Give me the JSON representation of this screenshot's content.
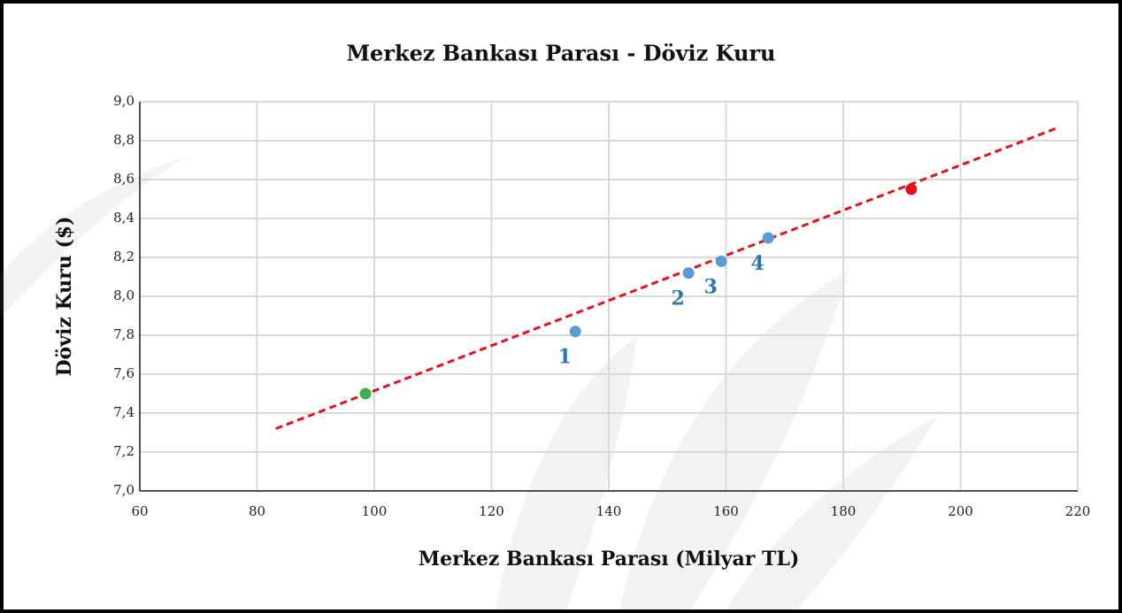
{
  "chart_data": {
    "type": "scatter",
    "title": "Merkez Bankası Parası - Döviz Kuru",
    "x_label": "Merkez Bankası Parası (Milyar TL)",
    "y_label": "Döviz Kuru ($)",
    "xlim": [
      60,
      220
    ],
    "xticks": [
      60,
      80,
      100,
      120,
      140,
      160,
      180,
      200,
      220
    ],
    "ylim": [
      7.0,
      9.0
    ],
    "yticks": [
      {
        "value": 7.0,
        "label": "7,0"
      },
      {
        "value": 7.2,
        "label": "7,2"
      },
      {
        "value": 7.4,
        "label": "7,4"
      },
      {
        "value": 7.6,
        "label": "7,6"
      },
      {
        "value": 7.8,
        "label": "7,8"
      },
      {
        "value": 8.0,
        "label": "8,0"
      },
      {
        "value": 8.2,
        "label": "8,2"
      },
      {
        "value": 8.4,
        "label": "8,4"
      },
      {
        "value": 8.6,
        "label": "8,6"
      },
      {
        "value": 8.8,
        "label": "8,8"
      },
      {
        "value": 9.0,
        "label": "9,0"
      }
    ],
    "grid": true,
    "series": [
      {
        "color": "#3cae4a",
        "x": [
          98.5
        ],
        "values": [
          7.5
        ]
      },
      {
        "color": "#5b9bd5",
        "x": [
          134.3,
          153.6,
          159.2,
          167.2
        ],
        "values": [
          7.82,
          8.12,
          8.18,
          8.3
        ],
        "point_labels": [
          "1",
          "2",
          "3",
          "4"
        ],
        "label_color": "#2e75b6"
      },
      {
        "color": "#e0141e",
        "x": [
          191.6
        ],
        "values": [
          8.55
        ]
      }
    ],
    "trendline": {
      "color": "#e0141e",
      "x": [
        83.2,
        216.9
      ],
      "values": [
        7.32,
        8.87
      ]
    }
  }
}
